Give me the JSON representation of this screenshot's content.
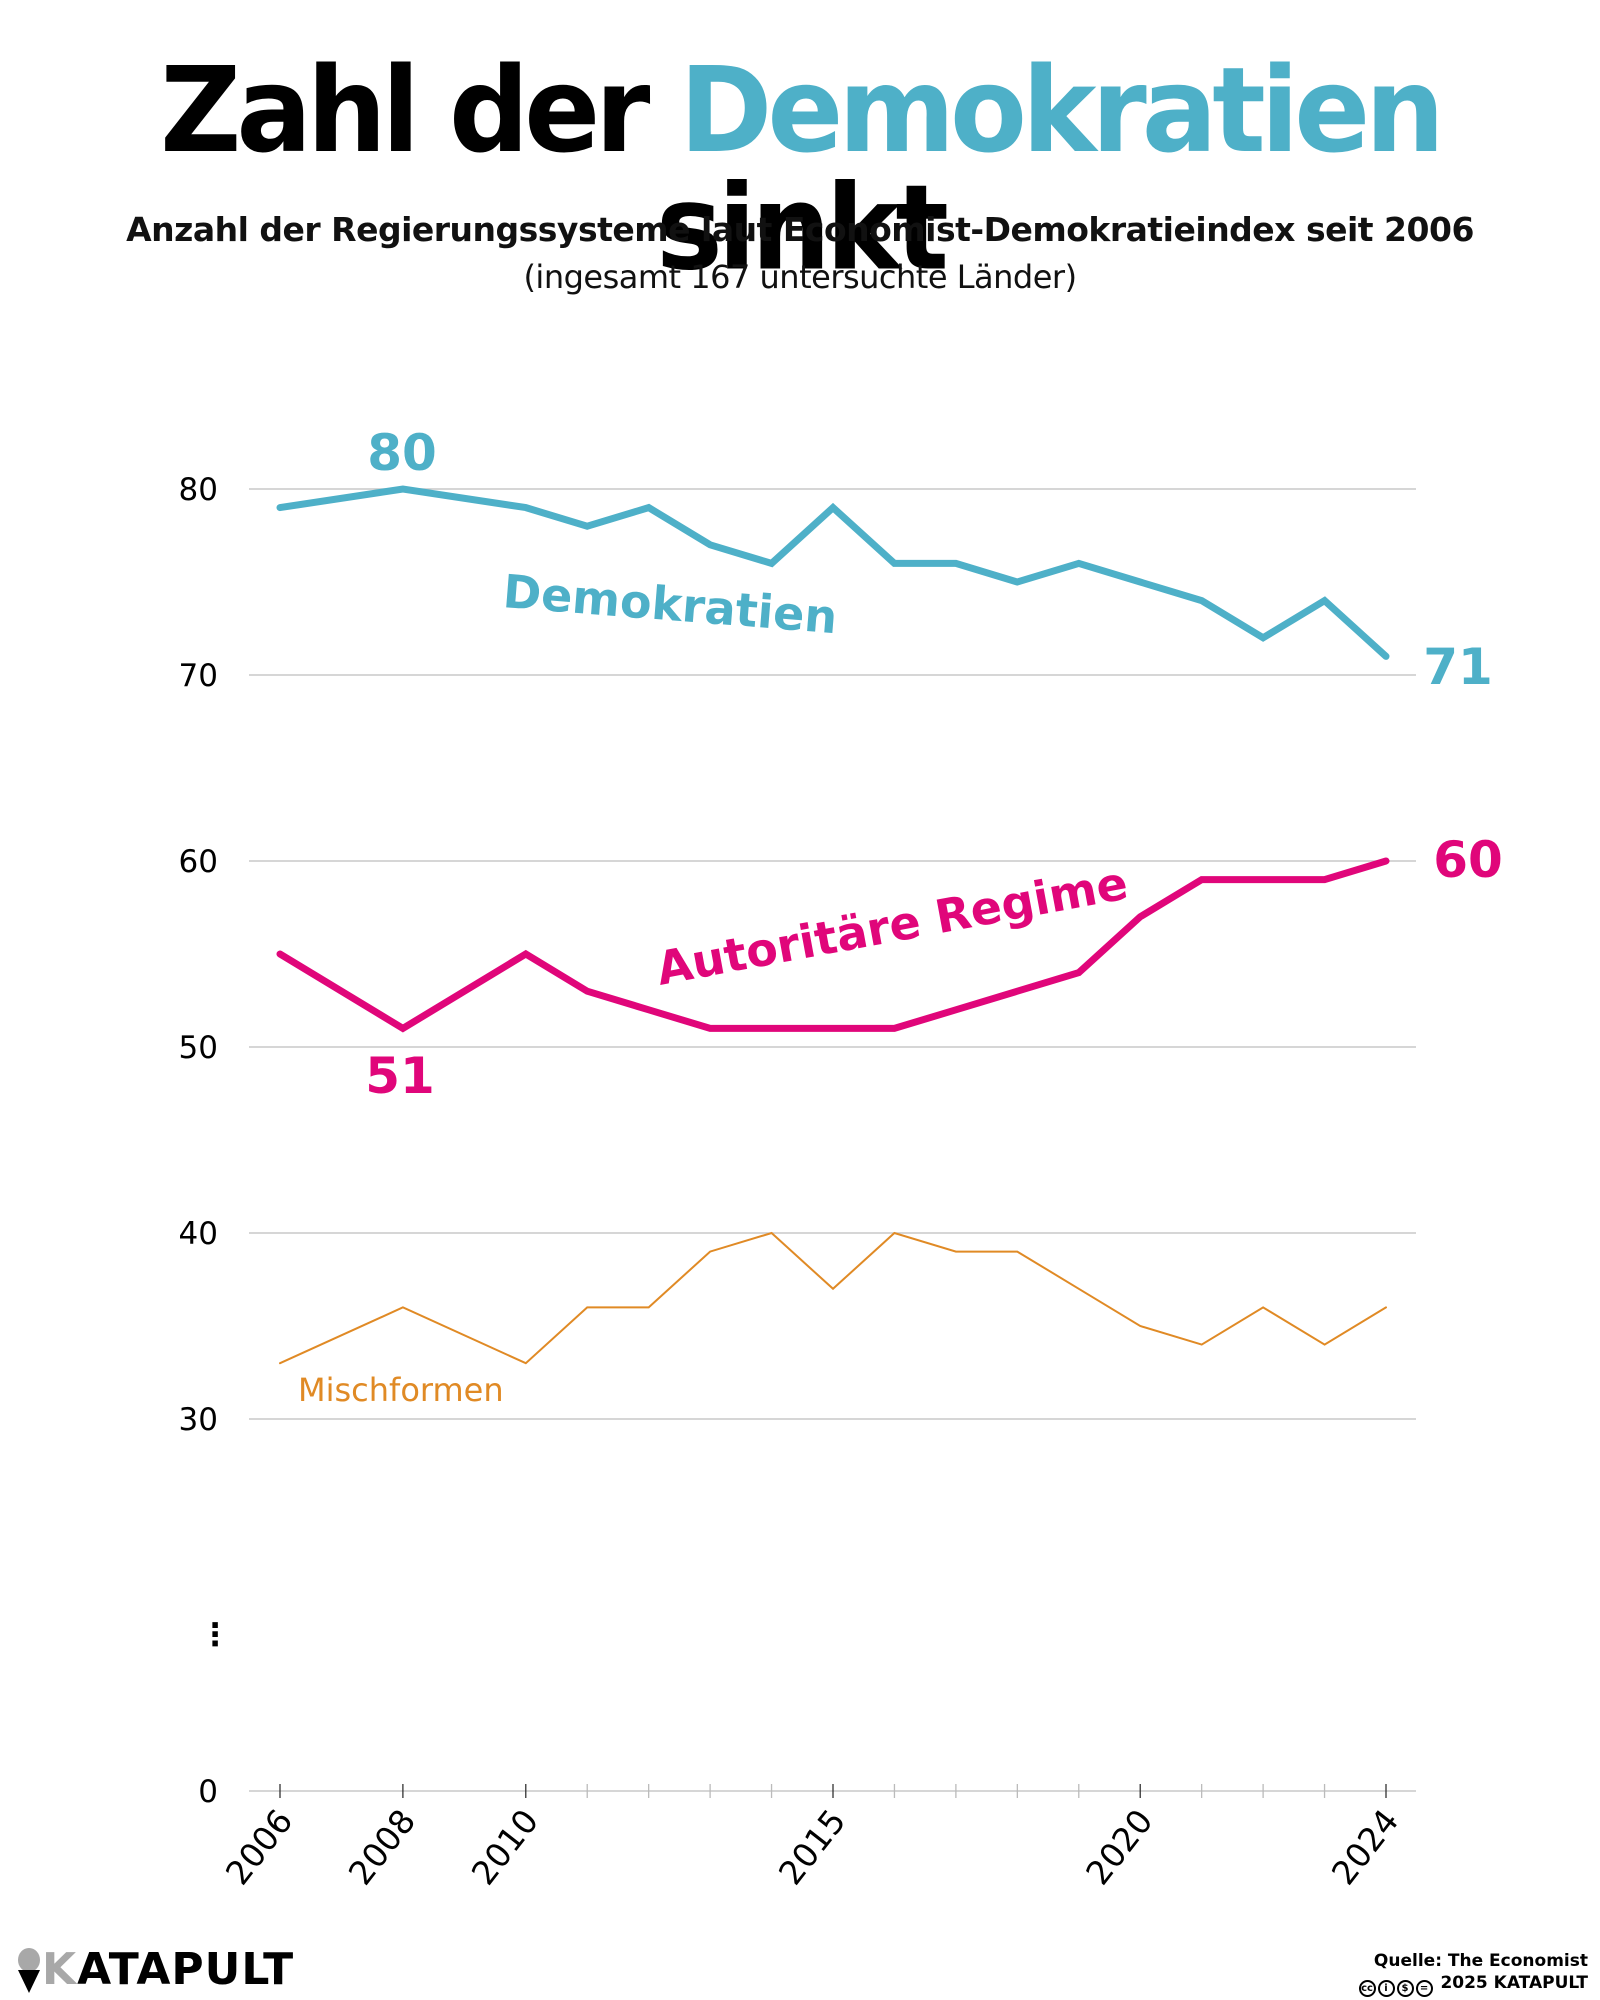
{
  "header": {
    "title_part1": "Zahl der",
    "title_highlight": "Demokratien",
    "title_part2": "sinkt",
    "subtitle": "Anzahl der Regierungssysteme laut Economist-Demokratieindex seit 2006",
    "subtitle2": "(ingesamt 167 untersuchte Länder)"
  },
  "colors": {
    "demokratien": "#4eb0c8",
    "autoritaer": "#e0067a",
    "mischformen": "#e08a25",
    "grid": "#c8c8c8"
  },
  "chart_data": {
    "type": "line",
    "title": "Zahl der Demokratien sinkt",
    "subtitle": "Anzahl der Regierungssysteme laut Economist-Demokratieindex seit 2006 (ingesamt 167 untersuchte Länder)",
    "xlabel": "",
    "ylabel": "",
    "x": [
      2006,
      2008,
      2010,
      2011,
      2012,
      2013,
      2014,
      2015,
      2016,
      2017,
      2018,
      2019,
      2020,
      2021,
      2022,
      2023,
      2024
    ],
    "x_tick_labels": [
      "2006",
      "2008",
      "2010",
      "2015",
      "2020",
      "2024"
    ],
    "x_minor_ticks": [
      2011,
      2012,
      2013,
      2014,
      2016,
      2017,
      2018,
      2019,
      2021,
      2022,
      2023
    ],
    "y_tick_labels": [
      "80",
      "70",
      "60",
      "50",
      "40",
      "30",
      "0"
    ],
    "y_axis_break": "⋮",
    "ylim": [
      30,
      80
    ],
    "grid": true,
    "series": [
      {
        "name": "Demokratien",
        "color": "#4eb0c8",
        "values": [
          79,
          80,
          79,
          78,
          79,
          77,
          76,
          79,
          76,
          76,
          75,
          76,
          75,
          74,
          72,
          74,
          71
        ],
        "annotations": [
          {
            "x": 2008,
            "label": "80",
            "position": "above"
          },
          {
            "x": 2024,
            "label": "71",
            "position": "right"
          }
        ]
      },
      {
        "name": "Autoritäre Regime",
        "color": "#e0067a",
        "values": [
          55,
          51,
          55,
          53,
          52,
          51,
          51,
          51,
          51,
          52,
          53,
          54,
          57,
          59,
          59,
          59,
          60
        ],
        "annotations": [
          {
            "x": 2008,
            "label": "51",
            "position": "below"
          },
          {
            "x": 2024,
            "label": "60",
            "position": "right"
          }
        ]
      },
      {
        "name": "Mischformen",
        "color": "#e08a25",
        "values": [
          33,
          36,
          33,
          36,
          36,
          39,
          40,
          37,
          40,
          39,
          39,
          37,
          35,
          34,
          36,
          34,
          36
        ],
        "annotations": []
      }
    ]
  },
  "footer": {
    "logo": "KATAPULT",
    "logo_first": "K",
    "logo_rest": "ATAPULT",
    "source": "Quelle: The Economist",
    "license_icons": [
      "cc",
      "by",
      "nc",
      "nd"
    ],
    "copyright": "2025 KATAPULT"
  }
}
